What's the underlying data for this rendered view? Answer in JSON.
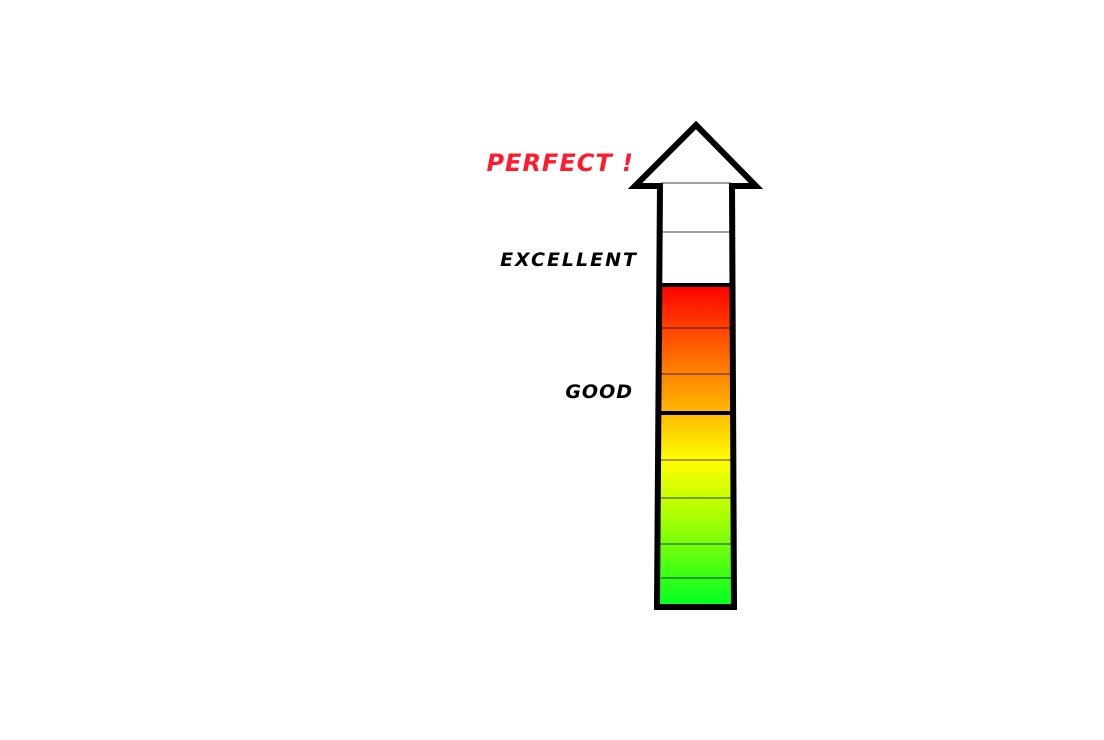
{
  "labels": {
    "perfect": "PERFECT !",
    "excellent": "EXCELLENT",
    "good": "GOOD"
  },
  "colors": {
    "perfect_text": "#ff1a2e",
    "label_text": "#000000",
    "outline": "#000000",
    "empty_fill": "#ffffff",
    "gradient_top": "#ff0000",
    "gradient_orange": "#ff6a00",
    "gradient_amber": "#ffc400",
    "gradient_yellow": "#ffff00",
    "gradient_lime": "#aaff00",
    "gradient_bottom": "#00ff22"
  },
  "meter": {
    "segments_total": 10,
    "segments_filled": 7,
    "level_fraction": 0.7
  }
}
